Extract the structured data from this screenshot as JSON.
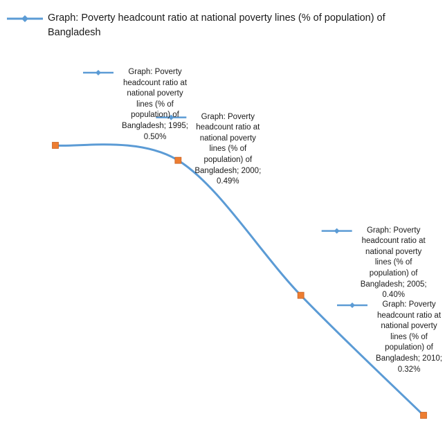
{
  "chart_data": {
    "type": "line",
    "title": "",
    "xlabel": "",
    "ylabel": "",
    "legend_position": "top-left",
    "grid": false,
    "line_color": "#5b9bd5",
    "marker_color": "#ed7d31",
    "series": [
      {
        "name": "Graph: Poverty headcount ratio at national poverty lines (% of population) of Bangladesh",
        "x": [
          1995,
          2000,
          2005,
          2010
        ],
        "values": [
          0.5,
          0.49,
          0.4,
          0.32
        ]
      }
    ],
    "data_labels": [
      [
        "Graph: Poverty",
        "headcount ratio at",
        "national poverty",
        "lines (% of",
        "population) of",
        "Bangladesh; 1995;",
        "0.50%"
      ],
      [
        "Graph: Poverty",
        "headcount ratio at",
        "national poverty",
        "lines (% of",
        "population) of",
        "Bangladesh; 2000;",
        "0.49%"
      ],
      [
        "Graph: Poverty",
        "headcount ratio at",
        "national poverty",
        "lines (% of",
        "population) of",
        "Bangladesh; 2005;",
        "0.40%"
      ],
      [
        "Graph: Poverty",
        "headcount ratio at",
        "national poverty",
        "lines (% of",
        "population) of",
        "Bangladesh; 2010;",
        "0.32%"
      ]
    ]
  }
}
